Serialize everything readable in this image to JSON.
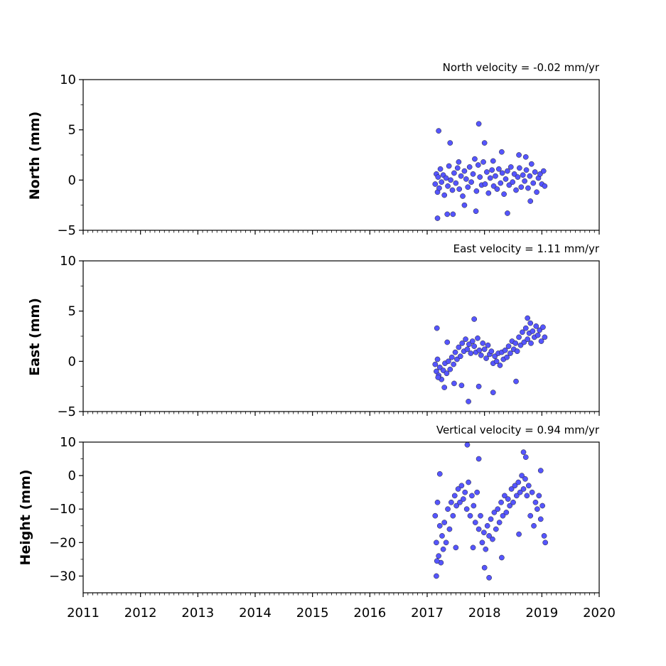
{
  "chart_data": [
    {
      "type": "scatter",
      "title": "North velocity = -0.02 mm/yr",
      "ylabel": "North (mm)",
      "xlabel": "",
      "xlim": [
        2011,
        2020
      ],
      "ylim": [
        -5,
        10
      ],
      "yticks": [
        -5,
        0,
        5,
        10
      ],
      "ytick_labels": [
        "−5",
        "0",
        "5",
        "10"
      ],
      "xticks": [
        2011,
        2012,
        2013,
        2014,
        2015,
        2016,
        2017,
        2018,
        2019,
        2020
      ],
      "xtick_labels": [
        "2011",
        "2012",
        "2013",
        "2014",
        "2015",
        "2016",
        "2017",
        "2018",
        "2019",
        "2020"
      ],
      "show_xtick_labels": false,
      "grid": false,
      "marker_color": "#5555ff",
      "marker_edge": "#222222",
      "series": [
        {
          "x": [
            2017.14,
            2017.16,
            2017.18,
            2017.19,
            2017.21,
            2017.23,
            2017.25,
            2017.28,
            2017.3,
            2017.33,
            2017.36,
            2017.38,
            2017.41,
            2017.44,
            2017.47,
            2017.5,
            2017.53,
            2017.56,
            2017.59,
            2017.62,
            2017.65,
            2017.68,
            2017.71,
            2017.74,
            2017.77,
            2017.8,
            2017.83,
            2017.86,
            2017.89,
            2017.92,
            2017.95,
            2017.98,
            2018.01,
            2018.04,
            2018.07,
            2018.1,
            2018.13,
            2018.16,
            2018.19,
            2018.22,
            2018.25,
            2018.28,
            2018.31,
            2018.34,
            2018.37,
            2018.4,
            2018.43,
            2018.46,
            2018.49,
            2018.52,
            2018.55,
            2018.58,
            2018.61,
            2018.64,
            2018.67,
            2018.7,
            2018.73,
            2018.76,
            2018.79,
            2018.82,
            2018.85,
            2018.88,
            2018.91,
            2018.94,
            2018.97,
            2019.0,
            2019.03,
            2019.05,
            2017.2,
            2017.4,
            2017.45,
            2017.9,
            2018.0,
            2018.4,
            2017.35,
            2017.18,
            2018.6,
            2018.3,
            2017.55,
            2017.85,
            2018.72,
            2018.8,
            2017.65,
            2018.15
          ],
          "y": [
            -0.4,
            0.6,
            -1.2,
            0.3,
            -0.8,
            1.1,
            -0.2,
            0.5,
            -1.5,
            0.2,
            -0.6,
            1.4,
            0.0,
            -1.0,
            0.7,
            -0.3,
            1.2,
            -0.9,
            0.4,
            -1.6,
            0.9,
            0.1,
            -0.7,
            1.3,
            -0.2,
            0.6,
            2.1,
            -1.1,
            1.5,
            0.3,
            -0.5,
            1.8,
            -0.4,
            0.8,
            -1.3,
            0.2,
            1.0,
            -0.6,
            0.4,
            -0.9,
            1.1,
            -0.3,
            0.7,
            -1.4,
            0.1,
            0.9,
            -0.5,
            1.3,
            -0.2,
            0.6,
            -1.0,
            0.3,
            1.2,
            -0.7,
            0.5,
            -0.1,
            1.0,
            -0.8,
            0.4,
            1.6,
            -0.3,
            0.8,
            -1.2,
            0.2,
            0.6,
            -0.4,
            0.9,
            -0.6,
            4.9,
            3.7,
            -3.4,
            5.6,
            3.7,
            -3.3,
            -3.4,
            -3.8,
            2.5,
            2.8,
            1.8,
            -3.1,
            2.3,
            -2.1,
            -2.5,
            1.9
          ]
        }
      ]
    },
    {
      "type": "scatter",
      "title": "East velocity = 1.11 mm/yr",
      "ylabel": "East (mm)",
      "xlabel": "",
      "xlim": [
        2011,
        2020
      ],
      "ylim": [
        -5,
        10
      ],
      "yticks": [
        -5,
        0,
        5,
        10
      ],
      "ytick_labels": [
        "−5",
        "0",
        "5",
        "10"
      ],
      "xticks": [
        2011,
        2012,
        2013,
        2014,
        2015,
        2016,
        2017,
        2018,
        2019,
        2020
      ],
      "xtick_labels": [
        "2011",
        "2012",
        "2013",
        "2014",
        "2015",
        "2016",
        "2017",
        "2018",
        "2019",
        "2020"
      ],
      "show_xtick_labels": false,
      "grid": false,
      "marker_color": "#5555ff",
      "marker_edge": "#222222",
      "series": [
        {
          "x": [
            2017.14,
            2017.16,
            2017.18,
            2017.2,
            2017.22,
            2017.25,
            2017.28,
            2017.31,
            2017.34,
            2017.37,
            2017.4,
            2017.43,
            2017.46,
            2017.49,
            2017.52,
            2017.55,
            2017.58,
            2017.61,
            2017.64,
            2017.67,
            2017.7,
            2017.73,
            2017.76,
            2017.79,
            2017.82,
            2017.85,
            2017.88,
            2017.91,
            2017.94,
            2017.97,
            2018.0,
            2018.03,
            2018.06,
            2018.09,
            2018.12,
            2018.15,
            2018.18,
            2018.21,
            2018.24,
            2018.27,
            2018.3,
            2018.33,
            2018.36,
            2018.39,
            2018.42,
            2018.45,
            2018.48,
            2018.51,
            2018.54,
            2018.57,
            2018.6,
            2018.63,
            2018.66,
            2018.69,
            2018.72,
            2018.75,
            2018.78,
            2018.81,
            2018.84,
            2018.87,
            2018.9,
            2018.93,
            2018.96,
            2018.99,
            2019.02,
            2019.05,
            2017.17,
            2017.19,
            2017.47,
            2017.72,
            2017.9,
            2018.15,
            2018.55,
            2018.75,
            2017.3,
            2017.6,
            2018.8,
            2017.35,
            2017.82
          ],
          "y": [
            -0.3,
            -1.0,
            0.2,
            -1.4,
            -0.6,
            -1.8,
            -0.9,
            -0.2,
            -1.2,
            0.0,
            -0.8,
            0.4,
            -0.3,
            0.9,
            0.2,
            1.4,
            0.5,
            1.8,
            1.0,
            2.2,
            1.2,
            1.7,
            0.8,
            2.0,
            1.5,
            0.9,
            2.3,
            1.1,
            0.6,
            1.8,
            1.2,
            0.3,
            1.6,
            0.7,
            1.0,
            -0.2,
            0.5,
            0.0,
            0.8,
            -0.4,
            0.9,
            0.2,
            1.1,
            0.4,
            1.5,
            0.8,
            2.0,
            1.2,
            1.8,
            1.0,
            2.4,
            1.6,
            2.9,
            1.9,
            3.3,
            2.2,
            2.8,
            1.8,
            3.0,
            2.4,
            3.5,
            2.6,
            3.1,
            2.0,
            3.4,
            2.4,
            3.3,
            -1.6,
            -2.2,
            -4.0,
            -2.5,
            -3.1,
            -2.0,
            4.3,
            -2.6,
            -2.4,
            3.8,
            1.9,
            4.2
          ]
        }
      ]
    },
    {
      "type": "scatter",
      "title": "Vertical velocity = 0.94 mm/yr",
      "ylabel": "Height (mm)",
      "xlabel": "",
      "xlim": [
        2011,
        2020
      ],
      "ylim": [
        -35,
        10
      ],
      "yticks": [
        -30,
        -20,
        -10,
        0,
        10
      ],
      "ytick_labels": [
        "−30",
        "−20",
        "−10",
        "0",
        "10"
      ],
      "xticks": [
        2011,
        2012,
        2013,
        2014,
        2015,
        2016,
        2017,
        2018,
        2019,
        2020
      ],
      "xtick_labels": [
        "2011",
        "2012",
        "2013",
        "2014",
        "2015",
        "2016",
        "2017",
        "2018",
        "2019",
        "2020"
      ],
      "show_xtick_labels": true,
      "grid": false,
      "marker_color": "#5555ff",
      "marker_edge": "#222222",
      "series": [
        {
          "x": [
            2017.14,
            2017.16,
            2017.18,
            2017.2,
            2017.22,
            2017.24,
            2017.26,
            2017.28,
            2017.3,
            2017.33,
            2017.36,
            2017.39,
            2017.42,
            2017.45,
            2017.48,
            2017.51,
            2017.54,
            2017.57,
            2017.6,
            2017.63,
            2017.66,
            2017.69,
            2017.72,
            2017.75,
            2017.78,
            2017.81,
            2017.84,
            2017.87,
            2017.9,
            2017.93,
            2017.96,
            2017.99,
            2018.02,
            2018.05,
            2018.08,
            2018.11,
            2018.14,
            2018.17,
            2018.2,
            2018.23,
            2018.26,
            2018.29,
            2018.32,
            2018.35,
            2018.38,
            2018.41,
            2018.44,
            2018.47,
            2018.5,
            2018.53,
            2018.56,
            2018.59,
            2018.62,
            2018.65,
            2018.68,
            2018.71,
            2018.74,
            2018.77,
            2018.8,
            2018.83,
            2018.86,
            2018.89,
            2018.92,
            2018.95,
            2018.98,
            2019.01,
            2019.04,
            2019.06,
            2017.16,
            2017.22,
            2017.7,
            2017.9,
            2018.0,
            2018.08,
            2018.68,
            2018.72,
            2018.98,
            2017.17,
            2017.5,
            2017.8,
            2018.3,
            2018.6
          ],
          "y": [
            -12,
            -20,
            -8,
            -24,
            -15,
            -26,
            -18,
            -22,
            -14,
            -20,
            -10,
            -16,
            -8,
            -12,
            -6,
            -9,
            -4,
            -8,
            -3,
            -7,
            -5,
            -10,
            -2,
            -12,
            -6,
            -9,
            -14,
            -5,
            -16,
            -12,
            -20,
            -17,
            -22,
            -15,
            -18,
            -13,
            -19,
            -11,
            -16,
            -10,
            -14,
            -8,
            -12,
            -6,
            -11,
            -7,
            -9,
            -4,
            -8,
            -3,
            -6,
            -2,
            -5,
            0,
            -4,
            -1,
            -6,
            -3,
            -12,
            -5,
            -15,
            -8,
            -10,
            -6,
            -13,
            -9,
            -18,
            -20,
            -30,
            0.5,
            9.2,
            5.0,
            -27.5,
            -30.5,
            7.0,
            5.5,
            1.5,
            -25.5,
            -21.5,
            -21.5,
            -24.5,
            -17.5
          ]
        }
      ]
    }
  ]
}
